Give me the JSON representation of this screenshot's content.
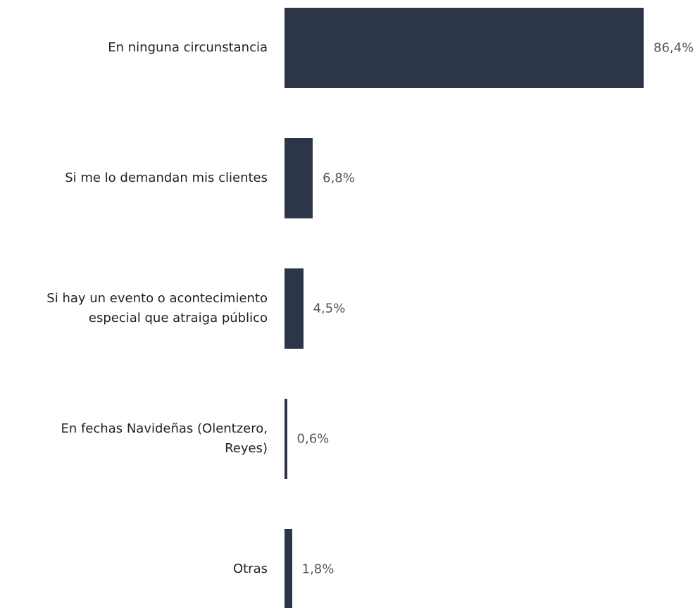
{
  "chart_data": {
    "type": "hbar",
    "categories": [
      "En ninguna circunstancia",
      "Si me lo demandan mis clientes",
      "Si hay un evento o acontecimiento\nespecial que atraiga público",
      "En fechas Navideñas (Olentzero,\nReyes)",
      "Otras"
    ],
    "values": [
      86.4,
      6.8,
      4.5,
      0.6,
      1.8
    ],
    "value_labels": [
      "86,4%",
      "6,8%",
      "4,5%",
      "0,6%",
      "1,8%"
    ],
    "color": "#2d3548"
  }
}
